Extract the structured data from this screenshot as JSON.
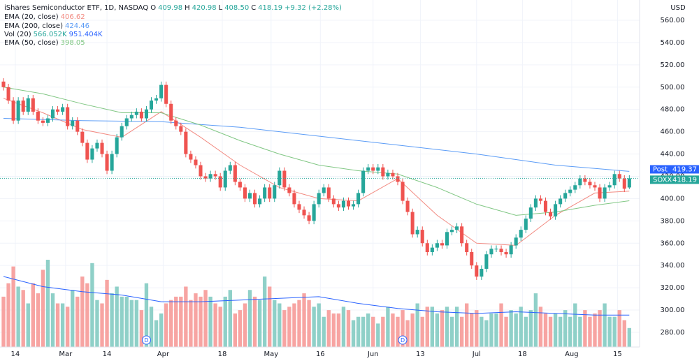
{
  "chart_data": {
    "type": "candlestick",
    "title": "iShares Semiconductor ETF, 1D, NASDAQ",
    "currency": "USD",
    "ohlc_legend": [
      {
        "name": "O",
        "value": 409.98,
        "label": "409.98"
      },
      {
        "name": "H",
        "value": 420.98,
        "label": "420.98"
      },
      {
        "name": "L",
        "value": 408.5,
        "label": "408.50"
      },
      {
        "name": "C",
        "value": 418.19,
        "label": "418.19"
      }
    ],
    "change": "+9.32 (+2.28%)",
    "up_color": "#26a69a",
    "down_color": "#ef5350",
    "open": [
      505,
      500,
      488,
      470,
      488,
      478,
      490,
      478,
      470,
      468,
      472,
      480,
      478,
      482,
      465,
      470,
      460,
      450,
      435,
      445,
      450,
      440,
      425,
      440,
      455,
      465,
      472,
      475,
      478,
      472,
      480,
      488,
      490,
      502,
      485,
      470,
      465,
      460,
      440,
      435,
      430,
      420,
      418,
      422,
      420,
      410,
      425,
      430,
      415,
      410,
      400,
      405,
      395,
      400,
      410,
      400,
      412,
      425,
      410,
      405,
      395,
      390,
      385,
      380,
      395,
      405,
      410,
      400,
      395,
      392,
      398,
      393,
      395,
      405,
      425,
      428,
      425,
      428,
      420,
      423,
      420,
      415,
      398,
      388,
      368,
      372,
      360,
      352,
      356,
      360,
      358,
      370,
      372,
      375,
      360,
      352,
      340,
      330,
      337,
      350,
      355,
      355,
      352,
      350,
      358,
      365,
      372,
      382,
      392,
      400,
      398,
      388,
      384,
      395,
      400,
      405,
      408,
      412,
      418,
      415,
      412,
      410,
      400,
      410,
      412,
      422,
      418,
      409.98
    ],
    "high": [
      508,
      503,
      491,
      491,
      491,
      493,
      493,
      481,
      473,
      475,
      483,
      483,
      485,
      485,
      473,
      473,
      463,
      453,
      448,
      453,
      453,
      443,
      443,
      458,
      468,
      475,
      478,
      481,
      481,
      483,
      491,
      493,
      505,
      505,
      488,
      473,
      468,
      463,
      443,
      438,
      433,
      423,
      425,
      425,
      423,
      428,
      433,
      433,
      418,
      413,
      408,
      408,
      403,
      413,
      413,
      415,
      428,
      428,
      413,
      408,
      398,
      393,
      388,
      398,
      408,
      413,
      413,
      403,
      398,
      401,
      401,
      398,
      408,
      428,
      431,
      431,
      431,
      431,
      426,
      426,
      423,
      418,
      401,
      391,
      375,
      375,
      363,
      359,
      363,
      363,
      373,
      375,
      378,
      378,
      363,
      355,
      343,
      340,
      353,
      358,
      358,
      358,
      355,
      361,
      368,
      375,
      385,
      395,
      403,
      403,
      401,
      391,
      398,
      403,
      408,
      411,
      415,
      421,
      421,
      418,
      415,
      413,
      413,
      415,
      425,
      425,
      421,
      420.98
    ],
    "low": [
      497,
      485,
      467,
      467,
      475,
      475,
      475,
      467,
      465,
      465,
      469,
      475,
      475,
      462,
      462,
      457,
      447,
      432,
      432,
      442,
      437,
      422,
      422,
      437,
      452,
      462,
      469,
      472,
      469,
      469,
      477,
      485,
      487,
      482,
      467,
      462,
      457,
      437,
      432,
      427,
      417,
      415,
      415,
      417,
      407,
      407,
      422,
      412,
      407,
      397,
      397,
      392,
      392,
      397,
      397,
      397,
      409,
      407,
      402,
      392,
      387,
      382,
      377,
      377,
      392,
      402,
      397,
      392,
      389,
      389,
      390,
      390,
      392,
      402,
      422,
      422,
      422,
      417,
      417,
      417,
      412,
      395,
      385,
      365,
      365,
      357,
      349,
      349,
      353,
      355,
      355,
      367,
      369,
      357,
      349,
      337,
      327,
      327,
      334,
      347,
      352,
      349,
      347,
      347,
      355,
      362,
      369,
      379,
      389,
      395,
      385,
      381,
      381,
      392,
      397,
      402,
      405,
      409,
      412,
      409,
      407,
      397,
      397,
      407,
      409,
      415,
      405.87,
      408.5
    ],
    "close": [
      500,
      488,
      470,
      488,
      478,
      490,
      478,
      470,
      468,
      472,
      480,
      478,
      482,
      465,
      470,
      460,
      450,
      435,
      445,
      450,
      440,
      425,
      440,
      455,
      465,
      472,
      475,
      478,
      472,
      480,
      488,
      490,
      502,
      485,
      470,
      465,
      460,
      440,
      435,
      430,
      420,
      418,
      422,
      420,
      410,
      425,
      430,
      415,
      410,
      400,
      405,
      395,
      400,
      410,
      400,
      412,
      425,
      410,
      405,
      395,
      390,
      385,
      380,
      395,
      405,
      410,
      400,
      395,
      392,
      398,
      393,
      395,
      405,
      425,
      428,
      425,
      428,
      420,
      423,
      420,
      415,
      398,
      388,
      368,
      372,
      360,
      352,
      356,
      360,
      358,
      370,
      372,
      375,
      360,
      352,
      340,
      330,
      337,
      350,
      355,
      355,
      352,
      350,
      358,
      365,
      372,
      382,
      392,
      400,
      398,
      388,
      384,
      395,
      400,
      405,
      408,
      412,
      418,
      415,
      412,
      410,
      400,
      410,
      412,
      422,
      418,
      408.87,
      418.19
    ],
    "volume": {
      "name": "Vol (20)",
      "legend_labels": [
        "566.052K",
        "951.404K"
      ],
      "up_color": "#8fd0c8",
      "down_color": "#f7a4a2",
      "values": [
        1500,
        1900,
        2400,
        1800,
        1700,
        1300,
        1900,
        1600,
        2300,
        2600,
        1600,
        1300,
        1300,
        1200,
        1700,
        1500,
        2100,
        1900,
        2500,
        1400,
        1300,
        2000,
        1600,
        1800,
        1500,
        1500,
        1400,
        1400,
        1100,
        1900,
        1200,
        800,
        1000,
        1300,
        1400,
        1500,
        1500,
        1800,
        1400,
        1600,
        1500,
        1700,
        1500,
        1300,
        1200,
        1500,
        1700,
        1000,
        1100,
        1300,
        1700,
        1500,
        1400,
        2100,
        1800,
        1400,
        1300,
        1100,
        1200,
        1300,
        1400,
        1600,
        1400,
        1200,
        1300,
        900,
        1100,
        1000,
        1000,
        1200,
        1100,
        800,
        900,
        900,
        1000,
        900,
        700,
        900,
        1200,
        1000,
        900,
        1100,
        800,
        1000,
        1300,
        900,
        1200,
        1200,
        1000,
        1100,
        1200,
        900,
        1200,
        900,
        1300,
        1000,
        1100,
        900,
        800,
        1000,
        1000,
        1300,
        900,
        1100,
        1000,
        1200,
        900,
        1100,
        1600,
        1200,
        1000,
        900,
        1000,
        900,
        1100,
        900,
        1300,
        900,
        1100,
        900,
        1000,
        1100,
        1300,
        900,
        900,
        1100,
        800,
        566.052
      ],
      "ma_color": "#2962ff",
      "ma_x": [
        0,
        8,
        16,
        24,
        32,
        40,
        48,
        56,
        64,
        72,
        80,
        88,
        96,
        104,
        112,
        120,
        127
      ],
      "ma_values": [
        2100,
        1800,
        1650,
        1550,
        1350,
        1350,
        1400,
        1450,
        1500,
        1300,
        1150,
        1050,
        1000,
        1050,
        1000,
        950,
        951.404
      ]
    },
    "lines": [
      {
        "name": "EMA (20, close)",
        "color": "#f28b82",
        "x": [
          0,
          8,
          16,
          24,
          32,
          40,
          48,
          56,
          64,
          72,
          80,
          88,
          96,
          104,
          112,
          120,
          127
        ],
        "values": [
          490,
          477,
          462,
          455,
          478,
          455,
          430,
          410,
          400,
          398,
          418,
          385,
          360,
          358,
          385,
          405,
          406.62
        ]
      },
      {
        "name": "EMA (200, close)",
        "color": "#5b9cf6",
        "x": [
          0,
          16,
          32,
          48,
          64,
          80,
          96,
          112,
          127
        ],
        "values": [
          472,
          470,
          469,
          464,
          456,
          448,
          440,
          430,
          424.46
        ]
      },
      {
        "name": "EMA (50, close)",
        "color": "#81c784",
        "x": [
          0,
          8,
          16,
          24,
          32,
          40,
          48,
          56,
          64,
          72,
          80,
          88,
          96,
          104,
          112,
          120,
          127
        ],
        "values": [
          500,
          494,
          485,
          477,
          477,
          466,
          452,
          440,
          430,
          425,
          422,
          410,
          395,
          385,
          388,
          394,
          398.05
        ]
      }
    ],
    "price_labels": [
      {
        "name": "Post",
        "value": 419.37,
        "color": "#2962ff"
      },
      {
        "name": "SOXX",
        "value": 418.19,
        "color": "#26a69a"
      }
    ],
    "dividends": [
      {
        "x": 29,
        "label": "D"
      },
      {
        "x": 81,
        "label": "D"
      }
    ],
    "ylim": [
      266.8,
      578.2
    ],
    "yticks": [
      {
        "value": 280,
        "label": "280.00"
      },
      {
        "value": 300,
        "label": "300.00"
      },
      {
        "value": 320,
        "label": "320.00"
      },
      {
        "value": 340,
        "label": "340.00"
      },
      {
        "value": 360,
        "label": "360.00"
      },
      {
        "value": 380,
        "label": "380.00"
      },
      {
        "value": 400,
        "label": "400.00"
      },
      {
        "value": 420,
        "label": "420.00"
      },
      {
        "value": 440,
        "label": "440.00"
      },
      {
        "value": 460,
        "label": "460.00"
      },
      {
        "value": 480,
        "label": "480.00"
      },
      {
        "value": 500,
        "label": "500.00"
      },
      {
        "value": 520,
        "label": "520.00"
      },
      {
        "value": 540,
        "label": "540.00"
      },
      {
        "value": 560,
        "label": "560.00"
      }
    ],
    "xlim": [
      -0.71,
      129.08
    ],
    "xticks": [
      {
        "value": 2.4,
        "label": "14"
      },
      {
        "value": 12.6,
        "label": "Mar"
      },
      {
        "value": 21,
        "label": "14"
      },
      {
        "value": 32.4,
        "label": "Apr"
      },
      {
        "value": 44.4,
        "label": "18"
      },
      {
        "value": 54.3,
        "label": "May"
      },
      {
        "value": 64.3,
        "label": "16"
      },
      {
        "value": 75,
        "label": "Jun"
      },
      {
        "value": 84.6,
        "label": "13"
      },
      {
        "value": 96,
        "label": "Jul"
      },
      {
        "value": 105.3,
        "label": "18"
      },
      {
        "value": 115.3,
        "label": "Aug"
      },
      {
        "value": 124.6,
        "label": "15"
      }
    ],
    "grid": true
  }
}
